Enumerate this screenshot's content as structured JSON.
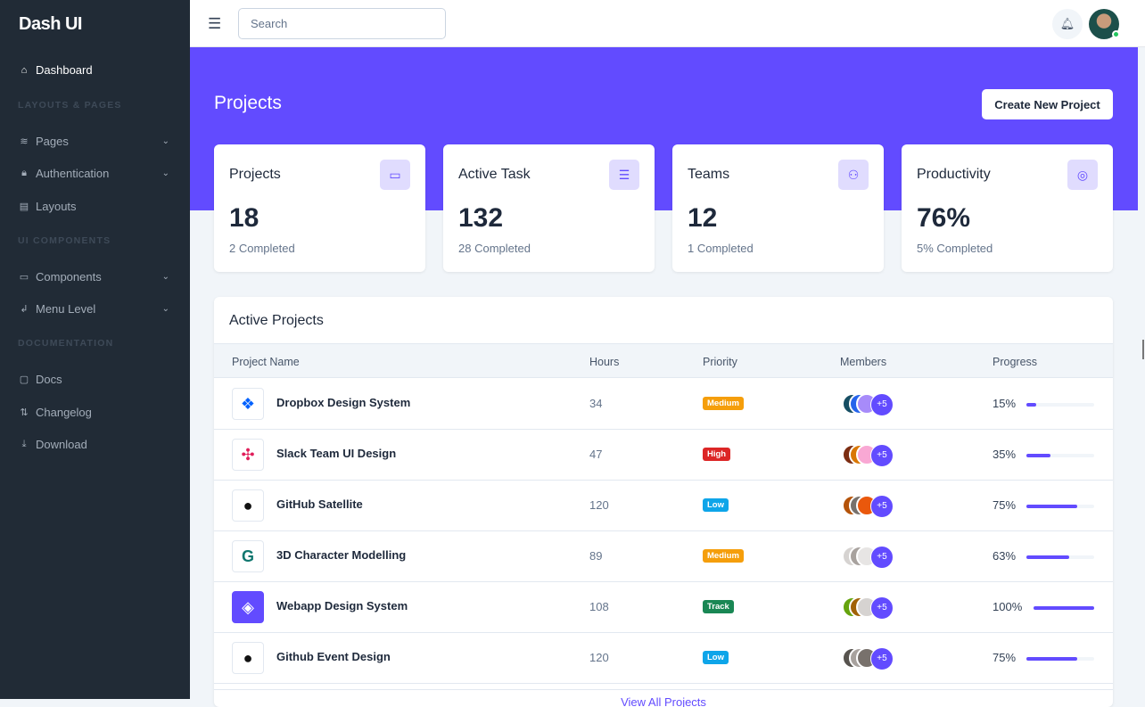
{
  "brand": "Dash UI",
  "sidebar": {
    "dashboard": "Dashboard",
    "sections": [
      "LAYOUTS & PAGES",
      "UI COMPONENTS",
      "DOCUMENTATION"
    ],
    "items": [
      {
        "label": "Pages",
        "icon": "layers-icon"
      },
      {
        "label": "Authentication",
        "icon": "lock-icon"
      },
      {
        "label": "Layouts",
        "icon": "layout-icon"
      },
      {
        "label": "Components",
        "icon": "monitor-icon"
      },
      {
        "label": "Menu Level",
        "icon": "corner-left-down-icon"
      },
      {
        "label": "Docs",
        "icon": "clipboard-icon"
      },
      {
        "label": "Changelog",
        "icon": "git-pull-request-icon"
      },
      {
        "label": "Download",
        "icon": "download-icon"
      }
    ]
  },
  "topbar": {
    "search_placeholder": "Search"
  },
  "header": {
    "title": "Projects",
    "create_button": "Create New Project"
  },
  "stats": [
    {
      "title": "Projects",
      "value": "18",
      "sub": "2 Completed",
      "icon": "briefcase-icon"
    },
    {
      "title": "Active Task",
      "value": "132",
      "sub": "28 Completed",
      "icon": "list-icon"
    },
    {
      "title": "Teams",
      "value": "12",
      "sub": "1 Completed",
      "icon": "users-icon"
    },
    {
      "title": "Productivity",
      "value": "76%",
      "sub": "5% Completed",
      "icon": "target-icon"
    }
  ],
  "projects": {
    "title": "Active Projects",
    "columns": [
      "Project Name",
      "Hours",
      "Priority",
      "Members",
      "Progress"
    ],
    "rows": [
      {
        "name": "Dropbox Design System",
        "hours": "34",
        "priority": "Medium",
        "members_extra": "+5",
        "progress_label": "15%",
        "progress": 15
      },
      {
        "name": "Slack Team UI Design",
        "hours": "47",
        "priority": "High",
        "members_extra": "+5",
        "progress_label": "35%",
        "progress": 35
      },
      {
        "name": "GitHub Satellite",
        "hours": "120",
        "priority": "Low",
        "members_extra": "+5",
        "progress_label": "75%",
        "progress": 75
      },
      {
        "name": "3D Character Modelling",
        "hours": "89",
        "priority": "Medium",
        "members_extra": "+5",
        "progress_label": "63%",
        "progress": 63
      },
      {
        "name": "Webapp Design System",
        "hours": "108",
        "priority": "Track",
        "members_extra": "+5",
        "progress_label": "100%",
        "progress": 100
      },
      {
        "name": "Github Event Design",
        "hours": "120",
        "priority": "Low",
        "members_extra": "+5",
        "progress_label": "75%",
        "progress": 75
      }
    ],
    "view_all": "View All Projects"
  },
  "colors": {
    "primary": "#624bff",
    "sidebar": "#212b36",
    "Medium": "#f59e0b",
    "High": "#dc2626",
    "Low": "#0ea5e9",
    "Track": "#198754"
  }
}
